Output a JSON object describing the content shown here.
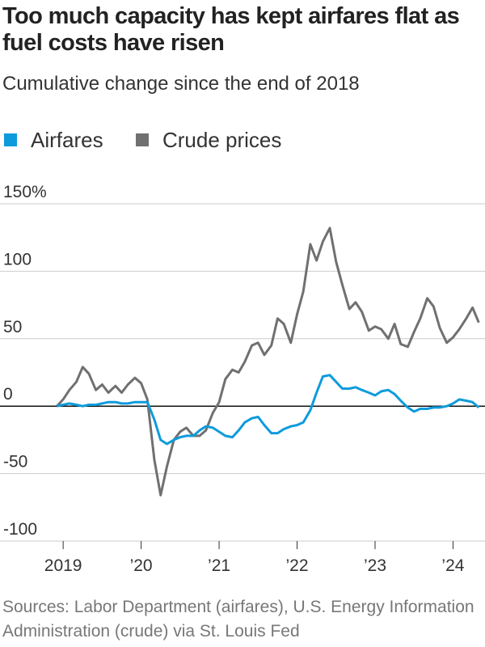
{
  "chart_data": {
    "type": "line",
    "title": "Too much capacity has kept airfares flat as fuel costs have risen",
    "subtitle": "Cumulative change since the end of 2018",
    "source": "Sources: Labor Department (airfares), U.S. Energy Information Administration (crude) via St. Louis Fed",
    "x": [
      2018.92,
      2019.0,
      2019.08,
      2019.17,
      2019.25,
      2019.33,
      2019.42,
      2019.5,
      2019.58,
      2019.67,
      2019.75,
      2019.83,
      2019.92,
      2020.0,
      2020.08,
      2020.17,
      2020.25,
      2020.33,
      2020.42,
      2020.5,
      2020.58,
      2020.67,
      2020.75,
      2020.83,
      2020.92,
      2021.0,
      2021.08,
      2021.17,
      2021.25,
      2021.33,
      2021.42,
      2021.5,
      2021.58,
      2021.67,
      2021.75,
      2021.83,
      2021.92,
      2022.0,
      2022.08,
      2022.17,
      2022.25,
      2022.33,
      2022.42,
      2022.5,
      2022.58,
      2022.67,
      2022.75,
      2022.83,
      2022.92,
      2023.0,
      2023.08,
      2023.17,
      2023.25,
      2023.33,
      2023.42,
      2023.5,
      2023.58,
      2023.67,
      2023.75,
      2023.83,
      2023.92,
      2024.0,
      2024.08,
      2024.17,
      2024.25,
      2024.33
    ],
    "series": [
      {
        "name": "Airfares",
        "color": "#0e9bdc",
        "values": [
          0,
          1,
          2,
          1,
          0,
          1,
          1,
          2,
          3,
          3,
          2,
          2,
          3,
          3,
          3,
          -10,
          -25,
          -28,
          -25,
          -23,
          -22,
          -22,
          -18,
          -15,
          -16,
          -19,
          -22,
          -23,
          -18,
          -12,
          -9,
          -8,
          -14,
          -20,
          -20,
          -17,
          -15,
          -14,
          -12,
          -3,
          10,
          22,
          23,
          18,
          13,
          13,
          14,
          12,
          10,
          8,
          11,
          12,
          9,
          4,
          -1,
          -4,
          -2,
          -2,
          -1,
          -1,
          0,
          2,
          5,
          4,
          3,
          -1
        ]
      },
      {
        "name": "Crude prices",
        "color": "#707070",
        "values": [
          0,
          5,
          12,
          18,
          29,
          24,
          12,
          16,
          10,
          15,
          10,
          16,
          21,
          17,
          5,
          -40,
          -66,
          -45,
          -25,
          -19,
          -16,
          -22,
          -22,
          -18,
          -5,
          3,
          20,
          27,
          25,
          33,
          45,
          47,
          38,
          45,
          65,
          61,
          47,
          68,
          85,
          120,
          108,
          122,
          132,
          107,
          90,
          72,
          77,
          70,
          56,
          59,
          57,
          50,
          61,
          46,
          44,
          55,
          65,
          80,
          74,
          58,
          47,
          51,
          57,
          65,
          73,
          62
        ]
      }
    ],
    "xlim": [
      2018.19,
      2024.41
    ],
    "xticks": [
      {
        "value": 2019,
        "label": "2019"
      },
      {
        "value": 2020,
        "label": "’20"
      },
      {
        "value": 2021,
        "label": "’21"
      },
      {
        "value": 2022,
        "label": "’22"
      },
      {
        "value": 2023,
        "label": "’23"
      },
      {
        "value": 2024,
        "label": "’24"
      }
    ],
    "ylim": [
      -100,
      150
    ],
    "yticks": [
      -100,
      -50,
      0,
      50,
      100,
      {
        "value": 150,
        "label": "150%"
      }
    ],
    "grid": true
  }
}
